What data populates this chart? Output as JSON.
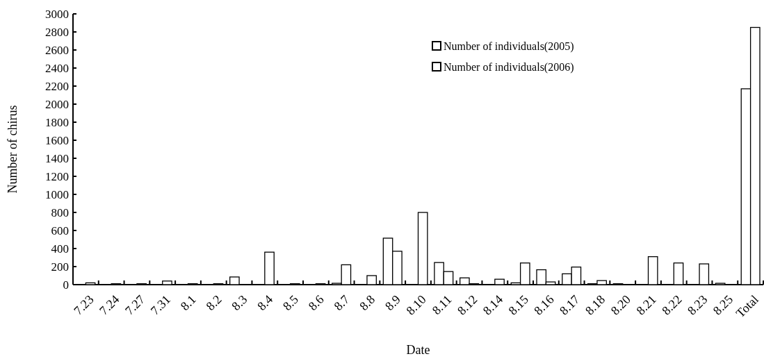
{
  "chart_data": {
    "type": "bar",
    "xlabel": "Date",
    "ylabel": "Number of chirus",
    "categories": [
      "7.23",
      "7.24",
      "7.27",
      "7.31",
      "8.1",
      "8.2",
      "8.3",
      "8.4",
      "8.5",
      "8.6",
      "8.7",
      "8.8",
      "8.9",
      "8.10",
      "8.11",
      "8.12",
      "8.14",
      "8.15",
      "8.16",
      "8.17",
      "8.18",
      "8.20",
      "8.21",
      "8.22",
      "8.23",
      "8.25",
      "Total"
    ],
    "series": [
      {
        "name": "Number of individuals(2005)",
        "color": "#ffffff",
        "values": [
          null,
          null,
          null,
          null,
          null,
          null,
          85,
          null,
          null,
          null,
          15,
          null,
          515,
          null,
          245,
          75,
          null,
          20,
          165,
          120,
          10,
          10,
          null,
          null,
          null,
          15,
          2170
        ]
      },
      {
        "name": "Number of individuals(2006)",
        "color": "#ffffff",
        "values": [
          20,
          10,
          10,
          40,
          10,
          10,
          null,
          360,
          10,
          10,
          220,
          100,
          370,
          800,
          145,
          10,
          60,
          240,
          30,
          195,
          45,
          null,
          310,
          240,
          230,
          null,
          2850
        ]
      }
    ],
    "ylim": [
      0,
      3000
    ],
    "yticks": [
      0,
      200,
      400,
      600,
      800,
      1000,
      1200,
      1400,
      1600,
      1800,
      2000,
      2200,
      2400,
      2600,
      2800,
      3000
    ],
    "legend": "top right"
  }
}
